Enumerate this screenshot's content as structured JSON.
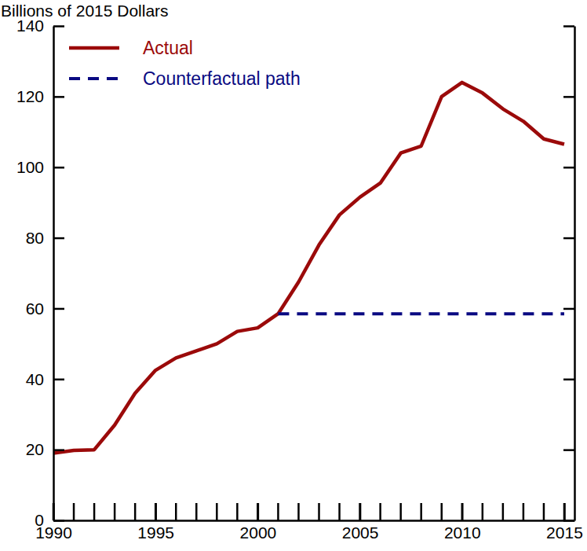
{
  "chart_data": {
    "type": "line",
    "y_label": "Billions of 2015 Dollars",
    "x": [
      1990,
      1991,
      1992,
      1993,
      1994,
      1995,
      1996,
      1997,
      1998,
      1999,
      2000,
      2001,
      2002,
      2003,
      2004,
      2005,
      2006,
      2007,
      2008,
      2009,
      2010,
      2011,
      2012,
      2013,
      2014,
      2015
    ],
    "series": [
      {
        "name": "Actual",
        "color": "#9b0a0a",
        "line_style": "solid",
        "values": [
          19,
          19.8,
          20,
          27,
          36,
          42.5,
          46,
          48,
          50,
          53.5,
          54.5,
          58.5,
          67.5,
          78,
          86.5,
          91.5,
          95.5,
          104,
          106,
          120,
          124,
          121,
          116.5,
          113,
          108,
          106.5
        ]
      },
      {
        "name": "Counterfactual path",
        "color": "#0a0a82",
        "line_style": "dashed",
        "values": [
          null,
          null,
          null,
          null,
          null,
          null,
          null,
          null,
          null,
          null,
          null,
          58.5,
          58.5,
          58.5,
          58.5,
          58.5,
          58.5,
          58.5,
          58.5,
          58.5,
          58.5,
          58.5,
          58.5,
          58.5,
          58.5,
          58.5
        ]
      }
    ],
    "xlim": [
      1990,
      2015.5
    ],
    "xticks": [
      1990,
      1995,
      2000,
      2005,
      2010,
      2015
    ],
    "ylim": [
      0,
      140
    ],
    "yticks": [
      0,
      20,
      40,
      60,
      80,
      100,
      120,
      140
    ],
    "legend": "upper left",
    "grid": false
  }
}
